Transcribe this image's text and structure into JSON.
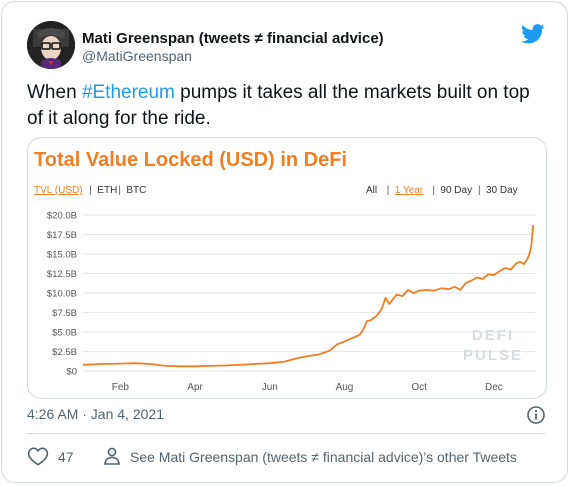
{
  "author": {
    "name": "Mati Greenspan (tweets ≠ financial advice)",
    "handle": "@MatiGreenspan"
  },
  "tweet": {
    "text_before": "When ",
    "hashtag": "#Ethereum",
    "text_after": " pumps it takes all the markets built on top of it along for the ride."
  },
  "meta": {
    "timestamp": "4:26 AM · Jan 4, 2021"
  },
  "actions": {
    "like_count": "47",
    "other_tweets": "See Mati Greenspan (tweets ≠ financial advice)’s other Tweets"
  },
  "icons": {
    "brand": "twitter-bird-icon",
    "like": "heart-icon",
    "profile": "person-icon",
    "info": "info-icon"
  },
  "colors": {
    "accent": "#1d9bf0",
    "chart_title": "#f07e22",
    "line": "#f07e22"
  },
  "chart_data": {
    "type": "line",
    "title": "Total Value Locked (USD) in DeFi",
    "tabs_left": [
      "TVL (USD)",
      "ETH",
      "BTC"
    ],
    "tabs_left_active": "TVL (USD)",
    "tabs_right": [
      "All",
      "1 Year",
      "90 Day",
      "30 Day"
    ],
    "tabs_right_active": "1 Year",
    "watermark": [
      "DEFI",
      "PULSE"
    ],
    "x_ticks": [
      "Feb",
      "Apr",
      "Jun",
      "Aug",
      "Oct",
      "Dec"
    ],
    "y_ticks": [
      "$0",
      "$2.5B",
      "$5.0B",
      "$7.5B",
      "$10.0B",
      "$12.5B",
      "$15.0B",
      "$17.5B",
      "$20.0B"
    ],
    "y_tick_values": [
      0,
      2.5,
      5,
      7.5,
      10,
      12.5,
      15,
      17.5,
      20
    ],
    "ylim": [
      0,
      20
    ],
    "xlim_months": [
      0,
      12.1
    ],
    "x_tick_positions": [
      1,
      3,
      5,
      7,
      9,
      11
    ],
    "grid": true,
    "series": [
      {
        "values_units": "billion USD",
        "points": [
          [
            0.0,
            0.8
          ],
          [
            0.5,
            0.9
          ],
          [
            1.0,
            0.95
          ],
          [
            1.4,
            1.0
          ],
          [
            1.8,
            0.9
          ],
          [
            2.2,
            0.65
          ],
          [
            2.6,
            0.6
          ],
          [
            3.0,
            0.6
          ],
          [
            3.4,
            0.65
          ],
          [
            3.8,
            0.7
          ],
          [
            4.2,
            0.8
          ],
          [
            4.6,
            0.9
          ],
          [
            5.0,
            1.0
          ],
          [
            5.4,
            1.2
          ],
          [
            5.7,
            1.6
          ],
          [
            6.0,
            1.9
          ],
          [
            6.3,
            2.1
          ],
          [
            6.6,
            2.6
          ],
          [
            6.8,
            3.4
          ],
          [
            7.0,
            3.8
          ],
          [
            7.2,
            4.2
          ],
          [
            7.4,
            4.6
          ],
          [
            7.5,
            5.3
          ],
          [
            7.6,
            6.4
          ],
          [
            7.7,
            6.5
          ],
          [
            7.85,
            7.0
          ],
          [
            8.0,
            8.0
          ],
          [
            8.1,
            9.4
          ],
          [
            8.2,
            8.6
          ],
          [
            8.3,
            9.2
          ],
          [
            8.4,
            9.8
          ],
          [
            8.55,
            9.6
          ],
          [
            8.7,
            10.4
          ],
          [
            8.85,
            10.0
          ],
          [
            9.0,
            10.3
          ],
          [
            9.2,
            10.4
          ],
          [
            9.4,
            10.3
          ],
          [
            9.6,
            10.6
          ],
          [
            9.8,
            10.5
          ],
          [
            9.95,
            10.8
          ],
          [
            10.1,
            10.4
          ],
          [
            10.25,
            11.3
          ],
          [
            10.4,
            11.6
          ],
          [
            10.55,
            12.0
          ],
          [
            10.7,
            11.8
          ],
          [
            10.85,
            12.4
          ],
          [
            11.0,
            12.3
          ],
          [
            11.15,
            12.8
          ],
          [
            11.3,
            13.2
          ],
          [
            11.45,
            13.0
          ],
          [
            11.6,
            13.8
          ],
          [
            11.7,
            14.0
          ],
          [
            11.8,
            13.7
          ],
          [
            11.9,
            14.4
          ],
          [
            11.95,
            15.0
          ],
          [
            12.0,
            16.0
          ],
          [
            12.05,
            18.7
          ]
        ]
      }
    ]
  }
}
